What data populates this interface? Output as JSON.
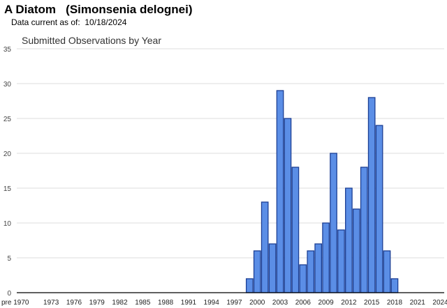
{
  "header": {
    "title": "A Diatom   (Simonsenia delognei)",
    "subtitle": "Data current as of:  10/18/2024"
  },
  "colors": {
    "bar_fill": "#5b8ee6",
    "bar_stroke": "#1c3f94",
    "grid": "#dddddd",
    "axis": "#000000"
  },
  "chart_data": {
    "type": "bar",
    "title": "Submitted Observations by Year",
    "xlabel": "",
    "ylabel": "",
    "ylim": [
      0,
      35
    ],
    "yticks": [
      0,
      5,
      10,
      15,
      20,
      25,
      30,
      35
    ],
    "grid": true,
    "categories": [
      "pre 1970",
      "1970",
      "1971",
      "1972",
      "1973",
      "1974",
      "1975",
      "1976",
      "1977",
      "1978",
      "1979",
      "1980",
      "1981",
      "1982",
      "1983",
      "1984",
      "1985",
      "1986",
      "1987",
      "1988",
      "1989",
      "1990",
      "1991",
      "1992",
      "1993",
      "1994",
      "1995",
      "1996",
      "1997",
      "1998",
      "1999",
      "2000",
      "2001",
      "2002",
      "2003",
      "2004",
      "2005",
      "2006",
      "2007",
      "2008",
      "2009",
      "2010",
      "2011",
      "2012",
      "2013",
      "2014",
      "2015",
      "2016",
      "2017",
      "2018",
      "2019",
      "2020",
      "2021",
      "2022",
      "2023",
      "2024"
    ],
    "tick_labels": [
      "pre 1970",
      "1973",
      "1976",
      "1979",
      "1982",
      "1985",
      "1988",
      "1991",
      "1994",
      "1997",
      "2000",
      "2003",
      "2006",
      "2009",
      "2012",
      "2015",
      "2018",
      "2021",
      "2024"
    ],
    "tick_positions": [
      0,
      4,
      7,
      10,
      13,
      16,
      19,
      22,
      25,
      28,
      31,
      34,
      37,
      40,
      43,
      46,
      49,
      52,
      55
    ],
    "values": [
      0,
      0,
      0,
      0,
      0,
      0,
      0,
      0,
      0,
      0,
      0,
      0,
      0,
      0,
      0,
      0,
      0,
      0,
      0,
      0,
      0,
      0,
      0,
      0,
      0,
      0,
      0,
      0,
      0,
      0,
      2,
      6,
      13,
      7,
      29,
      25,
      18,
      4,
      6,
      7,
      10,
      20,
      9,
      15,
      12,
      18,
      28,
      24,
      6,
      2,
      0,
      0,
      0,
      0,
      0,
      0
    ]
  }
}
